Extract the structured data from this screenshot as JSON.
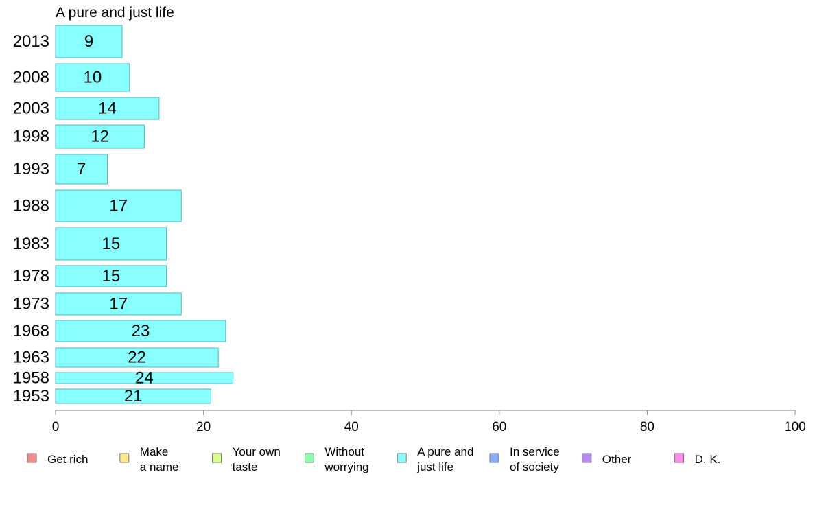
{
  "chart_data": {
    "type": "bar",
    "orientation": "horizontal",
    "title": "A pure and just life",
    "categories": [
      "2013",
      "2008",
      "2003",
      "1998",
      "1993",
      "1988",
      "1983",
      "1978",
      "1973",
      "1968",
      "1963",
      "1958",
      "1953"
    ],
    "series": [
      {
        "name": "A pure and just life",
        "values": [
          9,
          10,
          14,
          12,
          7,
          17,
          15,
          15,
          17,
          23,
          22,
          24,
          21
        ],
        "color": "#88ffff"
      }
    ],
    "xlim": [
      0,
      100
    ],
    "xticks": [
      0,
      20,
      40,
      60,
      80,
      100
    ],
    "grid": false,
    "legend": {
      "position": "bottom",
      "items": [
        {
          "lines": [
            "Get rich"
          ],
          "color": "#f48a8a"
        },
        {
          "lines": [
            "Make",
            "a name"
          ],
          "color": "#ffe88a"
        },
        {
          "lines": [
            "Your own",
            "taste"
          ],
          "color": "#d8ff8a"
        },
        {
          "lines": [
            "Without",
            "worrying"
          ],
          "color": "#8affaa"
        },
        {
          "lines": [
            "A pure and",
            "just life"
          ],
          "color": "#88ffff"
        },
        {
          "lines": [
            "In service",
            "of society"
          ],
          "color": "#88aaff"
        },
        {
          "lines": [
            "Other"
          ],
          "color": "#b88aff"
        },
        {
          "lines": [
            "D. K."
          ],
          "color": "#ff8ae8"
        }
      ]
    }
  }
}
